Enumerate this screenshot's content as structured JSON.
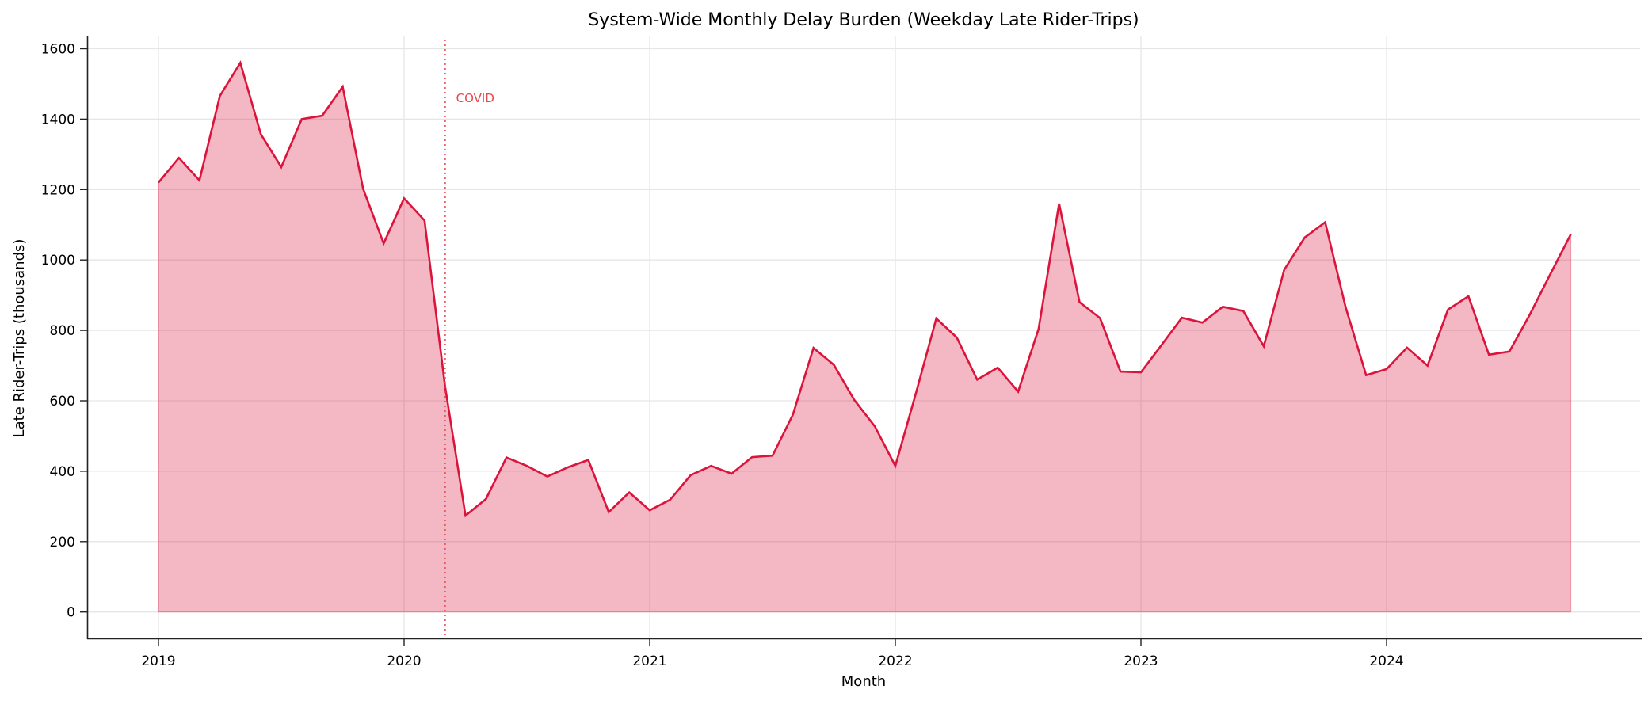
{
  "chart_data": {
    "type": "area",
    "title": "System-Wide Monthly Delay Burden (Weekday Late Rider-Trips)",
    "xlabel": "Month",
    "ylabel": "Late Rider-Trips (thousands)",
    "x_start": "2019-01",
    "x_end": "2024-10",
    "x_ticks": [
      "2019",
      "2020",
      "2021",
      "2022",
      "2023",
      "2024"
    ],
    "y_ticks": [
      0,
      200,
      400,
      600,
      800,
      1000,
      1200,
      1400,
      1600
    ],
    "ylim": [
      -75,
      1640
    ],
    "grid": true,
    "legend": null,
    "series": [
      {
        "name": "Late Rider-Trips (thousands)",
        "color": "#DC143C",
        "fill_color": "#DC143C",
        "fill_alpha": 0.3,
        "x": [
          "2019-01",
          "2019-02",
          "2019-03",
          "2019-04",
          "2019-05",
          "2019-06",
          "2019-07",
          "2019-08",
          "2019-09",
          "2019-10",
          "2019-11",
          "2019-12",
          "2020-01",
          "2020-02",
          "2020-03",
          "2020-04",
          "2020-05",
          "2020-06",
          "2020-07",
          "2020-08",
          "2020-09",
          "2020-10",
          "2020-11",
          "2020-12",
          "2021-01",
          "2021-02",
          "2021-03",
          "2021-04",
          "2021-05",
          "2021-06",
          "2021-07",
          "2021-08",
          "2021-09",
          "2021-10",
          "2021-11",
          "2021-12",
          "2022-01",
          "2022-02",
          "2022-03",
          "2022-04",
          "2022-05",
          "2022-06",
          "2022-07",
          "2022-08",
          "2022-09",
          "2022-10",
          "2022-11",
          "2022-12",
          "2023-01",
          "2023-02",
          "2023-03",
          "2023-04",
          "2023-05",
          "2023-06",
          "2023-07",
          "2023-08",
          "2023-09",
          "2023-10",
          "2023-11",
          "2023-12",
          "2024-01",
          "2024-02",
          "2024-03",
          "2024-04",
          "2024-05",
          "2024-06",
          "2024-07",
          "2024-08",
          "2024-09",
          "2024-10"
        ],
        "values": [
          1220,
          1290,
          1226,
          1466,
          1560,
          1357,
          1264,
          1400,
          1410,
          1492,
          1202,
          1047,
          1175,
          1112,
          641,
          274,
          321,
          439,
          415,
          385,
          411,
          432,
          284,
          340,
          289,
          319,
          389,
          415,
          393,
          440,
          444,
          561,
          750,
          702,
          602,
          527,
          415,
          620,
          834,
          780,
          660,
          694,
          626,
          804,
          1160,
          880,
          835,
          683,
          681,
          758,
          836,
          822,
          867,
          855,
          755,
          972,
          1064,
          1107,
          866,
          673,
          690,
          751,
          700,
          859,
          897,
          731,
          740,
          845,
          960,
          1073
        ]
      }
    ],
    "annotations": [
      {
        "type": "vline",
        "x": "2020-03",
        "style": "dotted",
        "color": "#e8474f",
        "label": "COVID"
      }
    ]
  }
}
